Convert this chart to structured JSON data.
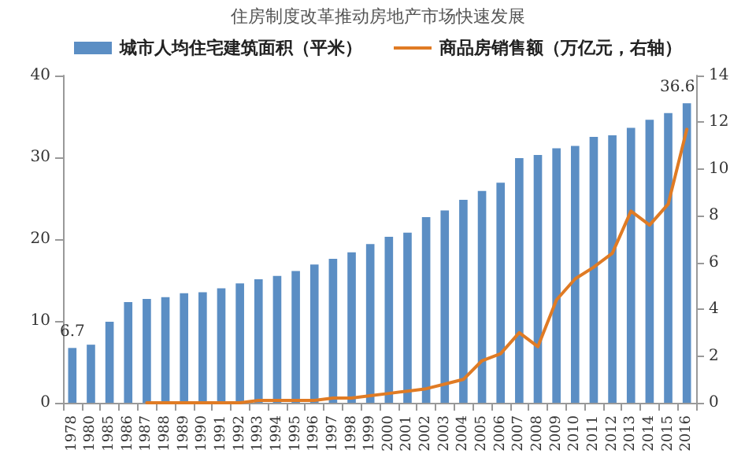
{
  "chart_data": {
    "type": "bar",
    "title": "住房制度改革推动房地产市场快速发展",
    "categories": [
      "1978",
      "1980",
      "1985",
      "1986",
      "1987",
      "1988",
      "1989",
      "1990",
      "1991",
      "1992",
      "1993",
      "1994",
      "1995",
      "1996",
      "1997",
      "1998",
      "1999",
      "2000",
      "2001",
      "2002",
      "2003",
      "2004",
      "2005",
      "2006",
      "2007",
      "2008",
      "2009",
      "2010",
      "2011",
      "2012",
      "2013",
      "2014",
      "2015",
      "2016"
    ],
    "series": [
      {
        "name": "城市人均住宅建筑面积（平米）",
        "color": "#5b8ec4",
        "values": [
          6.7,
          7.1,
          9.9,
          12.3,
          12.7,
          12.9,
          13.4,
          13.5,
          14.0,
          14.6,
          15.1,
          15.5,
          16.1,
          16.9,
          17.6,
          18.4,
          19.4,
          20.3,
          20.8,
          22.7,
          23.5,
          24.8,
          25.9,
          26.9,
          29.9,
          30.3,
          31.1,
          31.4,
          32.5,
          32.7,
          33.6,
          34.6,
          35.4,
          36.6
        ],
        "value_labels": [
          "6.7",
          null,
          null,
          null,
          null,
          null,
          null,
          null,
          null,
          null,
          null,
          null,
          null,
          null,
          null,
          null,
          null,
          null,
          null,
          null,
          null,
          null,
          null,
          null,
          null,
          null,
          null,
          null,
          null,
          null,
          null,
          null,
          null,
          "36.6"
        ]
      },
      {
        "name": "商品房销售额（万亿元，右轴）",
        "type": "line",
        "axis": "y2",
        "color": "#e07b24",
        "values": [
          null,
          null,
          null,
          null,
          0.0,
          0.0,
          0.0,
          0.0,
          0.0,
          0.0,
          0.1,
          0.1,
          0.1,
          0.1,
          0.2,
          0.2,
          0.3,
          0.4,
          0.5,
          0.6,
          0.8,
          1.0,
          1.8,
          2.1,
          3.0,
          2.4,
          4.4,
          5.3,
          5.8,
          6.4,
          8.2,
          7.6,
          8.5,
          11.7
        ]
      }
    ],
    "ylim": [
      0,
      40
    ],
    "yticks": [
      0,
      10,
      20,
      30,
      40
    ],
    "y2lim": [
      0,
      14
    ],
    "y2ticks": [
      0,
      2,
      4,
      6,
      8,
      10,
      12,
      14
    ],
    "legend": "top",
    "grid": false,
    "marker": "none",
    "line_style": "solid"
  }
}
